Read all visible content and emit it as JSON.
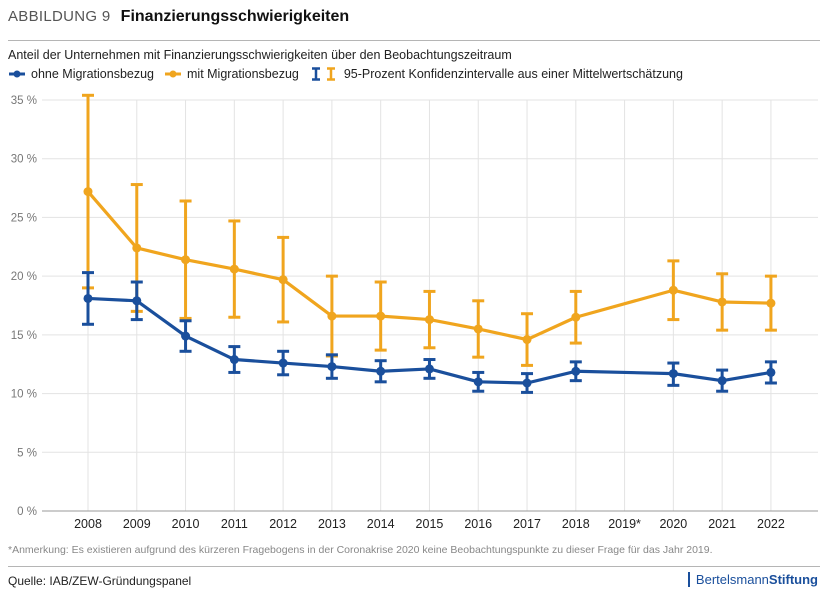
{
  "header": {
    "kicker": "ABBILDUNG 9",
    "title": "Finanzierungsschwierigkeiten"
  },
  "subtitle": "Anteil der Unternehmen mit Finanzierungsschwierigkeiten über den Beobachtungszeitraum",
  "legend": {
    "series_a": "ohne Migrationsbezug",
    "series_b": "mit Migrationsbezug",
    "ci": "95-Prozent Konfidenzintervalle aus einer Mittelwertschätzung"
  },
  "colors": {
    "blue": "#1a4f9c",
    "orange": "#f0a51e",
    "grid": "#e3e3e3"
  },
  "note": "*Anmerkung: Es existieren aufgrund des kürzeren Fragebogens in der Coronakrise 2020 keine Beobachtungspunkte zu dieser Frage für das Jahr 2019.",
  "source": "Quelle: IAB/ZEW-Gründungspanel",
  "brand": {
    "part1": "Bertelsmann",
    "part2": "Stiftung"
  },
  "chart_data": {
    "type": "line",
    "categories": [
      "2008",
      "2009",
      "2010",
      "2011",
      "2012",
      "2013",
      "2014",
      "2015",
      "2016",
      "2017",
      "2018",
      "2019*",
      "2020",
      "2021",
      "2022"
    ],
    "y_ticks": [
      "0 %",
      "5 %",
      "10 %",
      "15 %",
      "20 %",
      "25 %",
      "30 %",
      "35 %"
    ],
    "ylim": [
      0,
      35
    ],
    "grid": true,
    "legend_position": "top-left",
    "series": [
      {
        "name": "ohne Migrationsbezug",
        "color": "#1a4f9c",
        "values": [
          18.1,
          17.9,
          14.9,
          12.9,
          12.6,
          12.3,
          11.9,
          12.1,
          11.0,
          10.9,
          11.9,
          null,
          11.7,
          11.1,
          11.8
        ],
        "ci_low": [
          15.9,
          16.3,
          13.6,
          11.8,
          11.6,
          11.3,
          11.0,
          11.3,
          10.2,
          10.1,
          11.1,
          null,
          10.7,
          10.2,
          10.9
        ],
        "ci_high": [
          20.3,
          19.5,
          16.2,
          14.0,
          13.6,
          13.3,
          12.8,
          12.9,
          11.8,
          11.7,
          12.7,
          null,
          12.6,
          12.0,
          12.7
        ]
      },
      {
        "name": "mit Migrationsbezug",
        "color": "#f0a51e",
        "values": [
          27.2,
          22.4,
          21.4,
          20.6,
          19.7,
          16.6,
          16.6,
          16.3,
          15.5,
          14.6,
          16.5,
          null,
          18.8,
          17.8,
          17.7
        ],
        "ci_low": [
          19.0,
          17.0,
          16.4,
          16.5,
          16.1,
          13.2,
          13.7,
          13.9,
          13.1,
          12.4,
          14.3,
          null,
          16.3,
          15.4,
          15.4
        ],
        "ci_high": [
          35.4,
          27.8,
          26.4,
          24.7,
          23.3,
          20.0,
          19.5,
          18.7,
          17.9,
          16.8,
          18.7,
          null,
          21.3,
          20.2,
          20.0
        ]
      }
    ]
  }
}
